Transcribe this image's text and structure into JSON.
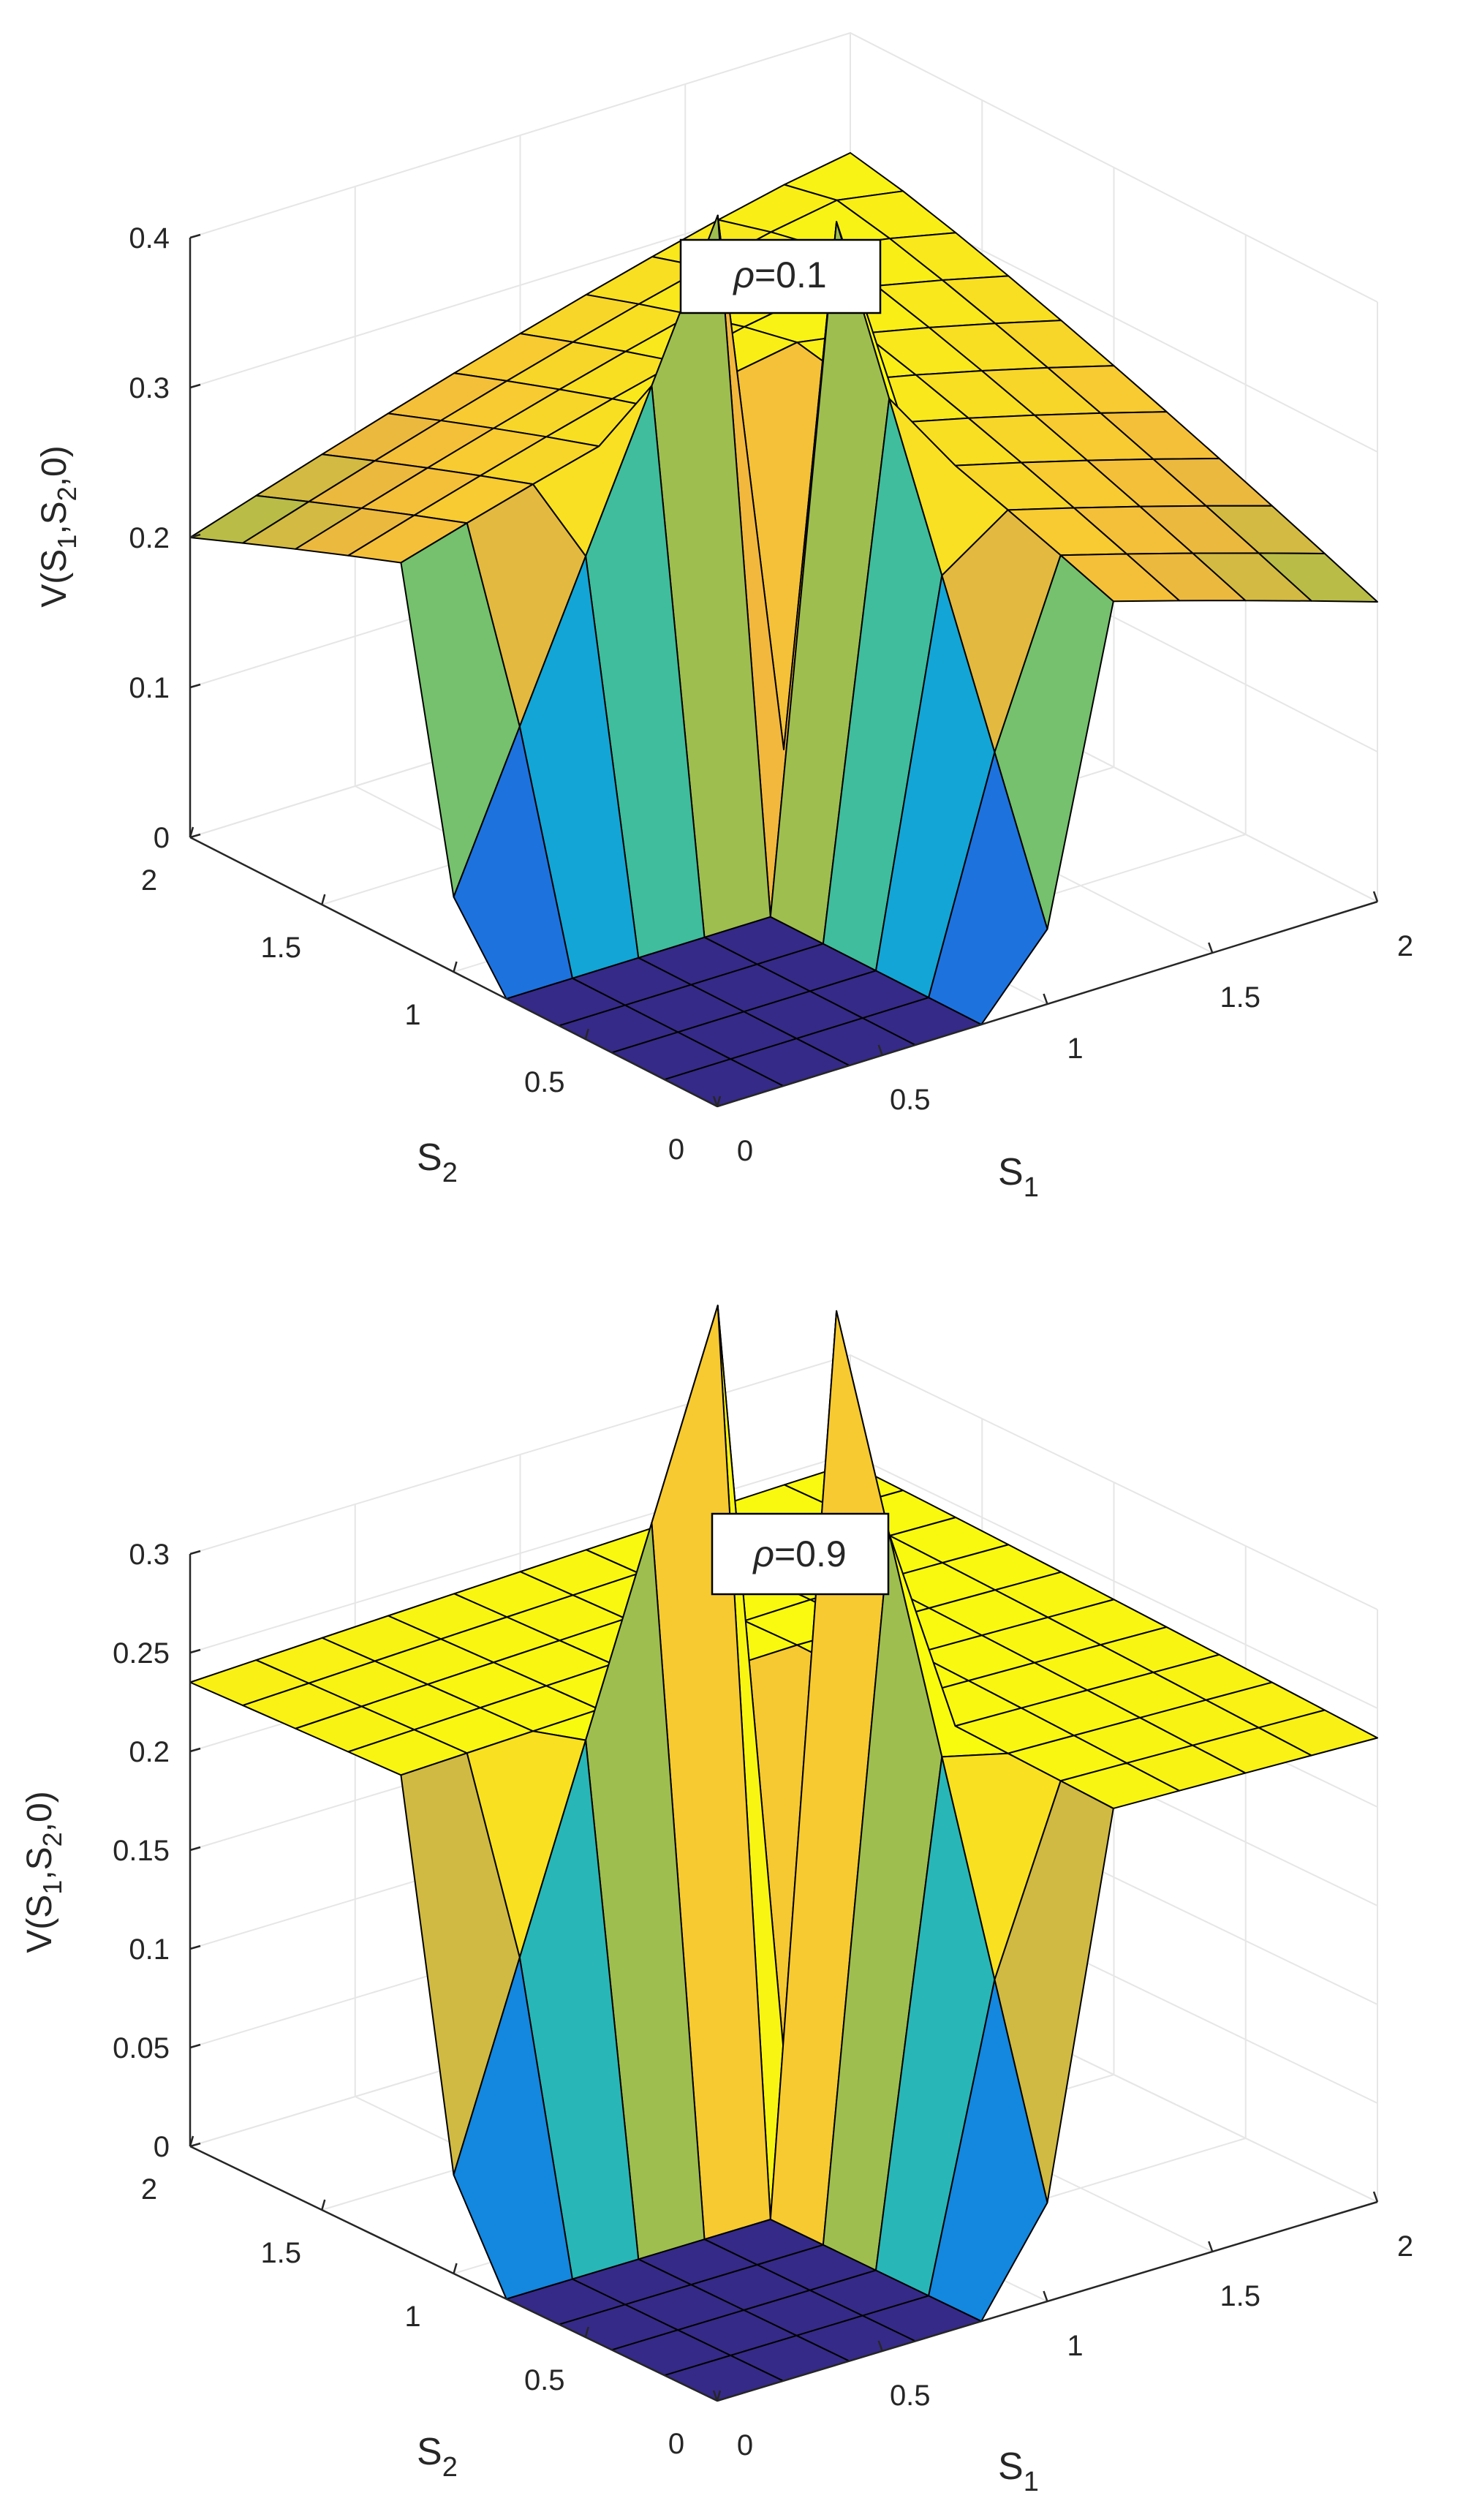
{
  "figure": {
    "background": "#ffffff",
    "axis_color": "#262626",
    "grid_color": "#e6e6e6",
    "edge_color": "#000000",
    "colormap": "parula",
    "colormap_stops": [
      "#352a87",
      "#2167de",
      "#0d9ae0",
      "#1bb2c8",
      "#52c386",
      "#a8bd48",
      "#f4b83e",
      "#f9dc25",
      "#f9fb0e"
    ]
  },
  "chart_data": [
    {
      "type": "surface",
      "annotation": "ρ=0.1",
      "annotation_parts": {
        "symbol": "ρ",
        "text": "=0.1"
      },
      "xlabel": {
        "base": "S",
        "sub": "1"
      },
      "ylabel": {
        "base": "S",
        "sub": "2"
      },
      "zlabel": {
        "pre": "V(S",
        "sub1": "1",
        "mid": ",S",
        "sub2": "2",
        "post": ",0)"
      },
      "xlim": [
        0,
        2
      ],
      "ylim": [
        0,
        2
      ],
      "zlim": [
        0,
        0.4
      ],
      "xticks": [
        "0",
        "0.5",
        "1",
        "1.5",
        "2"
      ],
      "yticks": [
        "0",
        "0.5",
        "1",
        "1.5",
        "2"
      ],
      "zticks": [
        "0",
        "0.1",
        "0.2",
        "0.3",
        "0.4"
      ],
      "zticks_values": [
        0,
        0.1,
        0.2,
        0.3,
        0.4
      ],
      "grid": true,
      "grid_x": [
        0,
        0.2,
        0.4,
        0.6,
        0.8,
        1.0,
        1.2,
        1.4,
        1.6,
        1.8,
        2.0
      ],
      "grid_y": [
        0,
        0.2,
        0.4,
        0.6,
        0.8,
        1.0,
        1.2,
        1.4,
        1.6,
        1.8,
        2.0
      ],
      "surface_model": {
        "description": "zero where both S1 and S2 below 1",
        "threshold": 1.0,
        "ridge_peak": 0.32,
        "edge_value": 0.2
      }
    },
    {
      "type": "surface",
      "annotation": "ρ=0.9",
      "annotation_parts": {
        "symbol": "ρ",
        "text": "=0.9"
      },
      "xlabel": {
        "base": "S",
        "sub": "1"
      },
      "ylabel": {
        "base": "S",
        "sub": "2"
      },
      "zlabel": {
        "pre": "V(S",
        "sub1": "1",
        "mid": ",S",
        "sub2": "2",
        "post": ",0)"
      },
      "xlim": [
        0,
        2
      ],
      "ylim": [
        0,
        2
      ],
      "zlim": [
        0,
        0.3
      ],
      "xticks": [
        "0",
        "0.5",
        "1",
        "1.5",
        "2"
      ],
      "yticks": [
        "0",
        "0.5",
        "1",
        "1.5",
        "2"
      ],
      "zticks": [
        "0",
        "0.05",
        "0.1",
        "0.15",
        "0.2",
        "0.25",
        "0.3"
      ],
      "zticks_values": [
        0,
        0.05,
        0.1,
        0.15,
        0.2,
        0.25,
        0.3
      ],
      "grid": true,
      "grid_x": [
        0,
        0.2,
        0.4,
        0.6,
        0.8,
        1.0,
        1.2,
        1.4,
        1.6,
        1.8,
        2.0
      ],
      "grid_y": [
        0,
        0.2,
        0.4,
        0.6,
        0.8,
        1.0,
        1.2,
        1.4,
        1.6,
        1.8,
        2.0
      ],
      "surface_model": {
        "description": "zero where both S1 and S2 below 1",
        "threshold": 1.0,
        "ridge_peak": 0.245,
        "edge_value": 0.235
      }
    }
  ]
}
